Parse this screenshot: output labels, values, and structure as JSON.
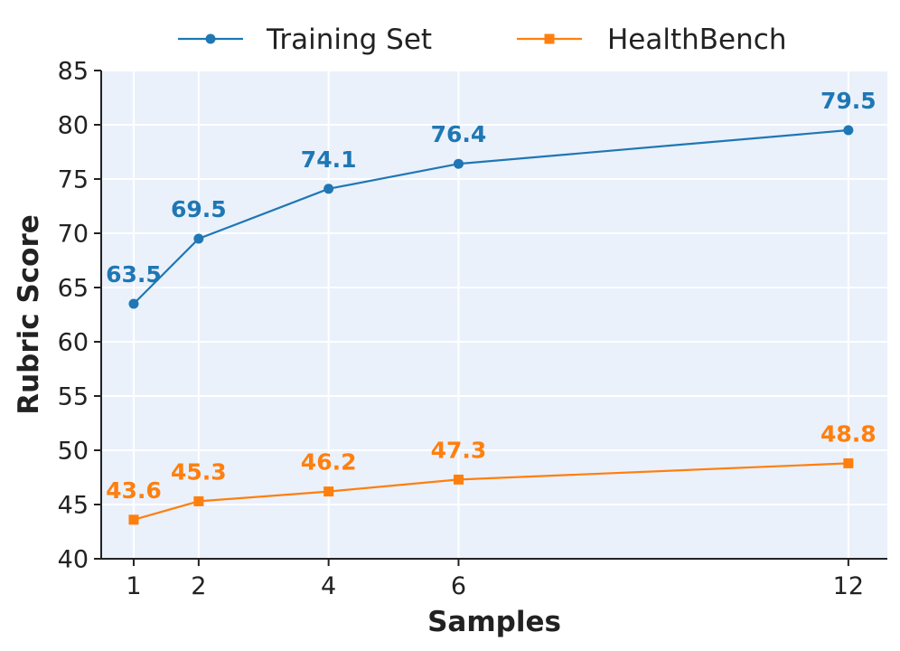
{
  "chart_data": {
    "type": "line",
    "title": "",
    "xlabel": "Samples",
    "ylabel": "Rubric Score",
    "x": [
      1,
      2,
      4,
      6,
      12
    ],
    "x_ticks": [
      "1",
      "2",
      "4",
      "6",
      "12"
    ],
    "xlim": [
      0.5,
      12.6
    ],
    "ylim": [
      40,
      85
    ],
    "y_ticks": [
      40,
      45,
      50,
      55,
      60,
      65,
      70,
      75,
      80,
      85
    ],
    "grid": true,
    "legend_position": "top-center",
    "series": [
      {
        "name": "Training Set",
        "color": "#1f77b4",
        "marker": "circle",
        "values": [
          63.5,
          69.5,
          74.1,
          76.4,
          79.5
        ],
        "labels": [
          "63.5",
          "69.5",
          "74.1",
          "76.4",
          "79.5"
        ]
      },
      {
        "name": "HealthBench",
        "color": "#ff7f0e",
        "marker": "square",
        "values": [
          43.6,
          45.3,
          46.2,
          47.3,
          48.8
        ],
        "labels": [
          "43.6",
          "45.3",
          "46.2",
          "47.3",
          "48.8"
        ]
      }
    ],
    "plot_background": "#eaf1fb",
    "grid_color": "#ffffff"
  }
}
